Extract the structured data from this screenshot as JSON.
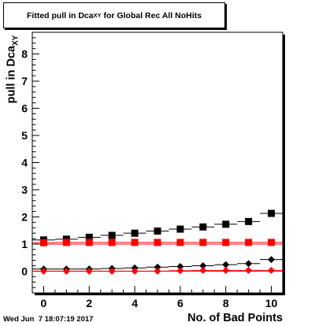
{
  "title": {
    "prefix": "Fitted pull in Dca",
    "subscript": "XY",
    "suffix": " for Global Rec All NoHits"
  },
  "timestamp": "Wed Jun  7 18:07:19 2017",
  "colors": {
    "black_series": "#000000",
    "red_series": "#ff0000",
    "reference_line": "#ff0000"
  },
  "chart_data": {
    "type": "scatter",
    "xlabel": "No. of Bad Points",
    "ylabel": {
      "text": "pull in Dca",
      "subscript": "XY"
    },
    "xlim": [
      -0.5,
      10.5
    ],
    "ylim": [
      -0.8,
      8.8
    ],
    "x_ticks": [
      "0",
      "2",
      "4",
      "6",
      "8",
      "10"
    ],
    "y_ticks": [
      "0",
      "1",
      "2",
      "3",
      "4",
      "5",
      "6",
      "7",
      "8"
    ],
    "reference_lines": [
      0,
      1
    ],
    "grid": false,
    "legend": "none",
    "x": [
      0,
      1,
      2,
      3,
      4,
      5,
      6,
      7,
      8,
      9,
      10
    ],
    "series": [
      {
        "color": "black",
        "marker": "square",
        "values": [
          1.15,
          1.18,
          1.25,
          1.32,
          1.4,
          1.48,
          1.55,
          1.63,
          1.73,
          1.83,
          2.13
        ]
      },
      {
        "color": "red",
        "marker": "square",
        "values": [
          1.05,
          1.06,
          1.06,
          1.06,
          1.06,
          1.06,
          1.06,
          1.06,
          1.06,
          1.06,
          1.06
        ]
      },
      {
        "color": "black",
        "marker": "diamond",
        "values": [
          0.08,
          0.08,
          0.08,
          0.1,
          0.12,
          0.15,
          0.17,
          0.2,
          0.24,
          0.28,
          0.43
        ]
      },
      {
        "color": "red",
        "marker": "diamond",
        "values": [
          0.0,
          0.0,
          0.0,
          0.0,
          0.0,
          0.0,
          0.02,
          0.03,
          0.03,
          0.03,
          0.03
        ]
      }
    ]
  }
}
